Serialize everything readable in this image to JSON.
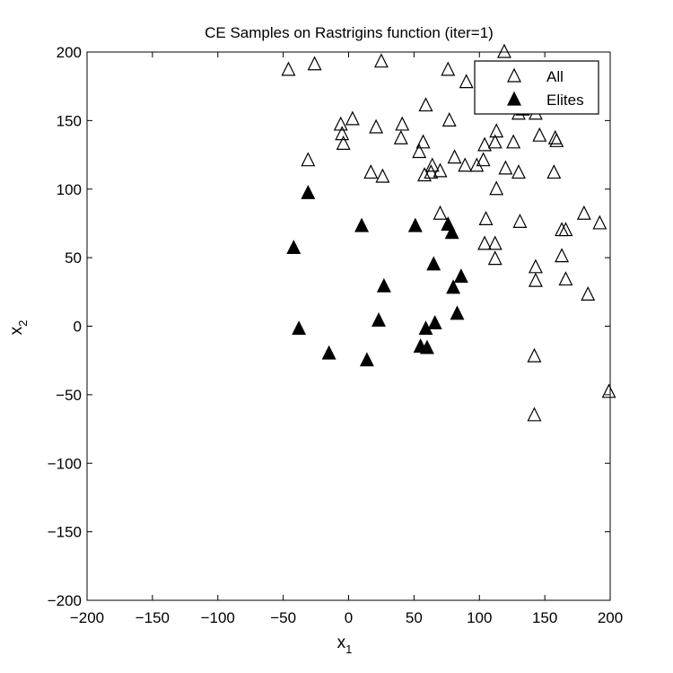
{
  "chart_data": {
    "type": "scatter",
    "title": "CE Samples on Rastrigins function (iter=1)",
    "xlabel": {
      "base": "x",
      "sub": "1"
    },
    "ylabel": {
      "base": "x",
      "sub": "2"
    },
    "xlim": [
      -200,
      200
    ],
    "ylim": [
      -200,
      200
    ],
    "xticks": [
      -200,
      -150,
      -100,
      -50,
      0,
      50,
      100,
      150,
      200
    ],
    "yticks": [
      -200,
      -150,
      -100,
      -50,
      0,
      50,
      100,
      150,
      200
    ],
    "grid": false,
    "legend_position": "top-right",
    "series": [
      {
        "name": "All",
        "marker": "open-triangle",
        "points": [
          [
            -46,
            187
          ],
          [
            -26,
            191
          ],
          [
            25,
            193
          ],
          [
            76,
            187
          ],
          [
            119,
            200
          ],
          [
            90,
            178
          ],
          [
            -6,
            147
          ],
          [
            3,
            151
          ],
          [
            21,
            145
          ],
          [
            41,
            147
          ],
          [
            59,
            161
          ],
          [
            77,
            150
          ],
          [
            -5,
            140
          ],
          [
            -4,
            133
          ],
          [
            40,
            137
          ],
          [
            57,
            134
          ],
          [
            -31,
            121
          ],
          [
            17,
            112
          ],
          [
            26,
            109
          ],
          [
            54,
            127
          ],
          [
            64,
            117
          ],
          [
            58,
            110
          ],
          [
            63,
            112
          ],
          [
            70,
            113
          ],
          [
            81,
            123
          ],
          [
            89,
            117
          ],
          [
            98,
            117
          ],
          [
            103,
            121
          ],
          [
            104,
            132
          ],
          [
            112,
            134
          ],
          [
            113,
            142
          ],
          [
            120,
            115
          ],
          [
            126,
            134
          ],
          [
            130,
            112
          ],
          [
            113,
            100
          ],
          [
            130,
            155
          ],
          [
            133,
            158
          ],
          [
            143,
            155
          ],
          [
            146,
            139
          ],
          [
            158,
            137
          ],
          [
            159,
            135
          ],
          [
            157,
            112
          ],
          [
            70,
            82
          ],
          [
            105,
            78
          ],
          [
            131,
            76
          ],
          [
            163,
            70
          ],
          [
            166,
            70
          ],
          [
            180,
            82
          ],
          [
            192,
            75
          ],
          [
            104,
            60
          ],
          [
            112,
            60
          ],
          [
            112,
            49
          ],
          [
            143,
            43
          ],
          [
            143,
            33
          ],
          [
            163,
            51
          ],
          [
            166,
            34
          ],
          [
            183,
            23
          ],
          [
            142,
            -22
          ],
          [
            142,
            -65
          ],
          [
            199,
            -48
          ]
        ]
      },
      {
        "name": "Elites",
        "marker": "filled-triangle",
        "points": [
          [
            -31,
            97
          ],
          [
            10,
            73
          ],
          [
            51,
            73
          ],
          [
            76,
            74
          ],
          [
            79,
            68
          ],
          [
            -42,
            57
          ],
          [
            65,
            45
          ],
          [
            27,
            29
          ],
          [
            86,
            36
          ],
          [
            80,
            28
          ],
          [
            83,
            9
          ],
          [
            23,
            4
          ],
          [
            66,
            2
          ],
          [
            59,
            -2
          ],
          [
            -38,
            -2
          ],
          [
            55,
            -15
          ],
          [
            60,
            -16
          ],
          [
            -15,
            -20
          ],
          [
            14,
            -25
          ]
        ]
      }
    ]
  }
}
